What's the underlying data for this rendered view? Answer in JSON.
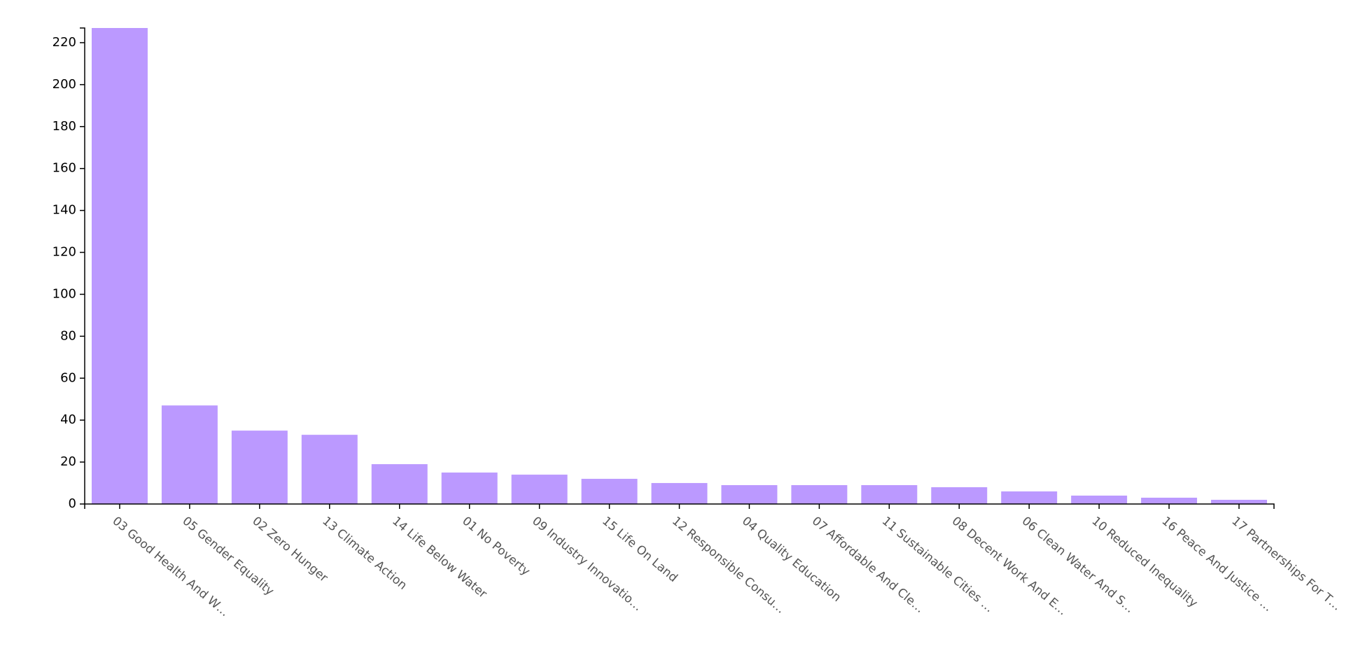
{
  "chart_data": {
    "type": "bar",
    "categories": [
      "03 Good Health And W…",
      "05 Gender Equality",
      "02 Zero Hunger",
      "13 Climate Action",
      "14 Life Below Water",
      "01 No Poverty",
      "09 Industry Innovatio…",
      "15 Life On Land",
      "12 Responsible Consu…",
      "04 Quality Education",
      "07 Affordable And Cle…",
      "11 Sustainable Cities …",
      "08 Decent Work And E…",
      "06 Clean Water And S…",
      "10 Reduced Inequality",
      "16 Peace And Justice …",
      "17 Partnerships For T…"
    ],
    "values": [
      227,
      47,
      35,
      33,
      19,
      15,
      14,
      12,
      10,
      9,
      9,
      9,
      8,
      6,
      4,
      3,
      2
    ],
    "color": "#bb99ff",
    "ylim": [
      0,
      227
    ],
    "yticks": [
      0,
      20,
      40,
      60,
      80,
      100,
      120,
      140,
      160,
      180,
      200,
      220
    ]
  }
}
